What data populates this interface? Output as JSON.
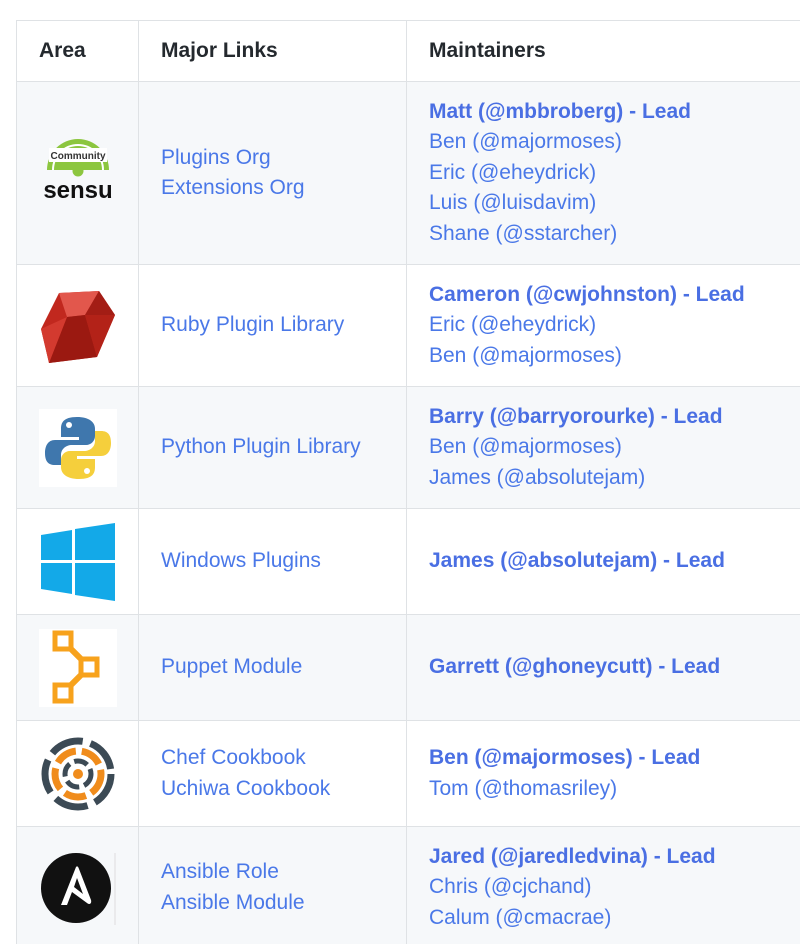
{
  "table": {
    "headers": {
      "area": "Area",
      "links": "Major Links",
      "maintainers": "Maintainers"
    },
    "rows": [
      {
        "logo": "sensu-community-logo",
        "logo_text": {
          "top": "Community",
          "main": "sensu"
        },
        "links": [
          "Plugins Org",
          "Extensions Org"
        ],
        "maintainers": [
          "Matt (@mbbroberg) - Lead",
          "Ben (@majormoses)",
          "Eric (@eheydrick)",
          "Luis (@luisdavim)",
          "Shane (@sstarcher)"
        ]
      },
      {
        "logo": "ruby-logo",
        "links": [
          "Ruby Plugin Library"
        ],
        "maintainers": [
          "Cameron (@cwjohnston) - Lead",
          "Eric (@eheydrick)",
          "Ben (@majormoses)"
        ]
      },
      {
        "logo": "python-logo",
        "links": [
          "Python Plugin Library"
        ],
        "maintainers": [
          "Barry (@barryorourke) - Lead",
          "Ben (@majormoses)",
          "James (@absolutejam)"
        ]
      },
      {
        "logo": "windows-logo",
        "links": [
          "Windows Plugins"
        ],
        "maintainers": [
          "James (@absolutejam) - Lead"
        ]
      },
      {
        "logo": "puppet-logo",
        "links": [
          "Puppet Module"
        ],
        "maintainers": [
          "Garrett (@ghoneycutt) - Lead"
        ]
      },
      {
        "logo": "chef-logo",
        "links": [
          "Chef Cookbook",
          "Uchiwa Cookbook"
        ],
        "maintainers": [
          "Ben (@majormoses) - Lead",
          "Tom (@thomasriley)"
        ]
      },
      {
        "logo": "ansible-logo",
        "links": [
          "Ansible Role",
          "Ansible Module"
        ],
        "maintainers": [
          "Jared (@jaredledvina) - Lead",
          "Chris (@cjchand)",
          "Calum (@cmacrae)"
        ]
      }
    ]
  },
  "colors": {
    "link": "#4a78e8",
    "lead": "#4a6fe3",
    "border": "#dfe2e5",
    "stripe": "#f6f8fa",
    "sensu_green": "#8cc63f",
    "ruby_red": "#c1281e",
    "python_blue": "#3f77ad",
    "python_yellow": "#f5cf3c",
    "windows_blue": "#13a9e8",
    "puppet_orange": "#f7a21c",
    "chef_orange": "#f08c1c",
    "chef_dark": "#3c4a55"
  }
}
